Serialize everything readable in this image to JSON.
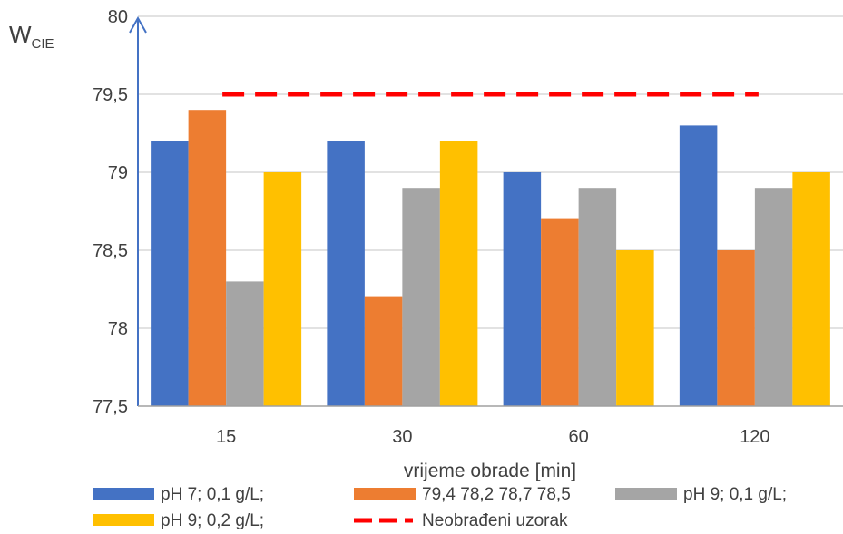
{
  "chart_data": {
    "type": "bar",
    "title": "",
    "ylabel": "W",
    "ylabel_subscript": "CIE",
    "xlabel": "vrijeme obrade [min]",
    "categories": [
      "15",
      "30",
      "60",
      "120"
    ],
    "ylim": [
      77.5,
      80
    ],
    "yticks": [
      77.5,
      78,
      78.5,
      79,
      79.5,
      80
    ],
    "ytick_labels": [
      "77,5",
      "78",
      "78,5",
      "79",
      "79,5",
      "80"
    ],
    "grid": true,
    "legend_position": "bottom",
    "series": [
      {
        "name": "pH 7; 0,1 g/L;",
        "color": "#4472C4",
        "values": [
          79.2,
          79.2,
          79.0,
          79.3
        ]
      },
      {
        "name": "79,4 78,2 78,7 78,5",
        "color": "#ED7D31",
        "values": [
          79.4,
          78.2,
          78.7,
          78.5
        ]
      },
      {
        "name": "pH 9; 0,1 g/L;",
        "color": "#A5A5A5",
        "values": [
          78.3,
          78.9,
          78.9,
          78.9
        ]
      },
      {
        "name": "pH 9; 0,2 g/L;",
        "color": "#FFC000",
        "values": [
          79.0,
          79.2,
          78.5,
          79.0
        ]
      }
    ],
    "reference_line": {
      "name": "Neobrađeni uzorak",
      "color": "#FF0000",
      "value": 79.5,
      "style": "dashed"
    }
  }
}
